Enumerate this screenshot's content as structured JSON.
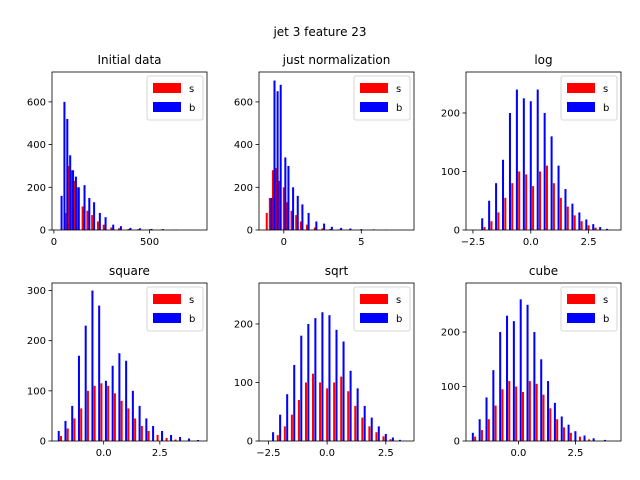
{
  "figure": {
    "title": "jet 3 feature 23"
  },
  "colors": {
    "s": "#ff0000",
    "b": "#0000ff"
  },
  "chart_data": [
    {
      "type": "bar",
      "title": "Initial data",
      "xlim": [
        -10,
        800
      ],
      "ylim": [
        0,
        740
      ],
      "xticks": [
        0,
        500
      ],
      "xtick_labels": [
        "0",
        "500"
      ],
      "yticks": [
        0,
        200,
        400,
        600
      ],
      "ytick_labels": [
        "0",
        "200",
        "400",
        "600"
      ],
      "legend": [
        "s",
        "b"
      ],
      "legend_position": "upper right",
      "series": [
        {
          "name": "s",
          "x": [
            60,
            75,
            90,
            105,
            120,
            150,
            175,
            200,
            230,
            260,
            300,
            340,
            390,
            440,
            500,
            560,
            620
          ],
          "values": [
            80,
            300,
            280,
            230,
            200,
            110,
            90,
            70,
            40,
            25,
            12,
            8,
            5,
            4,
            3,
            2,
            1
          ]
        },
        {
          "name": "b",
          "x": [
            40,
            55,
            70,
            85,
            100,
            115,
            130,
            160,
            185,
            210,
            240,
            270,
            310,
            350,
            400,
            450,
            510,
            570,
            640,
            720
          ],
          "values": [
            160,
            600,
            520,
            350,
            280,
            250,
            200,
            210,
            150,
            130,
            80,
            60,
            25,
            18,
            10,
            8,
            5,
            4,
            2,
            1
          ]
        }
      ]
    },
    {
      "type": "bar",
      "title": "just normalization",
      "xlim": [
        -1.6,
        8.4
      ],
      "ylim": [
        0,
        740
      ],
      "xticks": [
        0,
        5
      ],
      "xtick_labels": [
        "0",
        "5"
      ],
      "yticks": [
        0,
        200,
        400,
        600
      ],
      "ytick_labels": [
        "0",
        "200",
        "400",
        "600"
      ],
      "legend": [
        "s",
        "b"
      ],
      "legend_position": "upper right",
      "series": [
        {
          "name": "s",
          "x": [
            -1.1,
            -0.9,
            -0.7,
            -0.5,
            -0.3,
            0.0,
            0.2,
            0.5,
            0.8,
            1.1,
            1.5,
            2.0,
            2.5,
            3.0,
            3.6,
            4.2,
            5.0
          ],
          "values": [
            80,
            150,
            280,
            290,
            230,
            200,
            130,
            90,
            70,
            40,
            25,
            12,
            8,
            5,
            3,
            2,
            1
          ]
        },
        {
          "name": "b",
          "x": [
            -0.8,
            -0.6,
            -0.4,
            -0.2,
            0.1,
            0.3,
            0.6,
            0.9,
            1.2,
            1.6,
            2.1,
            2.6,
            3.1,
            3.7,
            4.3,
            5.0,
            5.8,
            6.6,
            7.5
          ],
          "values": [
            150,
            700,
            650,
            680,
            340,
            300,
            200,
            160,
            120,
            80,
            40,
            30,
            15,
            10,
            7,
            4,
            3,
            2,
            1
          ]
        }
      ]
    },
    {
      "type": "bar",
      "title": "log",
      "xlim": [
        -2.8,
        3.9
      ],
      "ylim": [
        0,
        270
      ],
      "xticks": [
        -2.5,
        0.0,
        2.5
      ],
      "xtick_labels": [
        "−2.5",
        "0.0",
        "2.5"
      ],
      "yticks": [
        0,
        100,
        200
      ],
      "ytick_labels": [
        "0",
        "100",
        "200"
      ],
      "legend": [
        "s",
        "b"
      ],
      "legend_position": "upper right",
      "series": [
        {
          "name": "s",
          "x": [
            -2.0,
            -1.7,
            -1.4,
            -1.1,
            -0.8,
            -0.5,
            -0.2,
            0.1,
            0.4,
            0.7,
            1.0,
            1.3,
            1.6,
            1.9,
            2.2,
            2.5,
            2.8
          ],
          "values": [
            5,
            15,
            30,
            55,
            80,
            100,
            95,
            75,
            100,
            110,
            80,
            55,
            40,
            25,
            15,
            8,
            4
          ]
        },
        {
          "name": "b",
          "x": [
            -2.1,
            -1.8,
            -1.5,
            -1.2,
            -0.9,
            -0.6,
            -0.3,
            0.0,
            0.3,
            0.6,
            0.9,
            1.2,
            1.5,
            1.8,
            2.1,
            2.4,
            2.7,
            3.0,
            3.3
          ],
          "values": [
            20,
            50,
            80,
            120,
            200,
            240,
            225,
            220,
            240,
            200,
            160,
            110,
            70,
            45,
            30,
            18,
            10,
            5,
            2
          ]
        }
      ]
    },
    {
      "type": "bar",
      "title": "square",
      "xlim": [
        -2.3,
        4.6
      ],
      "ylim": [
        0,
        315
      ],
      "xticks": [
        0.0,
        2.5
      ],
      "xtick_labels": [
        "0.0",
        "2.5"
      ],
      "yticks": [
        0,
        100,
        200,
        300
      ],
      "ytick_labels": [
        "0",
        "100",
        "200",
        "300"
      ],
      "legend": [
        "s",
        "b"
      ],
      "legend_position": "upper right",
      "series": [
        {
          "name": "s",
          "x": [
            -1.9,
            -1.6,
            -1.3,
            -1.0,
            -0.7,
            -0.4,
            -0.1,
            0.2,
            0.5,
            0.8,
            1.1,
            1.4,
            1.7,
            2.0,
            2.4,
            2.8,
            3.2
          ],
          "values": [
            10,
            25,
            45,
            65,
            100,
            110,
            115,
            110,
            95,
            80,
            65,
            45,
            30,
            20,
            12,
            6,
            3
          ]
        },
        {
          "name": "b",
          "x": [
            -2.0,
            -1.7,
            -1.4,
            -1.1,
            -0.8,
            -0.5,
            -0.2,
            0.1,
            0.4,
            0.7,
            1.0,
            1.3,
            1.6,
            1.9,
            2.2,
            2.6,
            3.0,
            3.4,
            3.8,
            4.2
          ],
          "values": [
            20,
            40,
            70,
            170,
            230,
            300,
            270,
            120,
            150,
            175,
            160,
            100,
            70,
            45,
            30,
            20,
            12,
            8,
            5,
            2
          ]
        }
      ]
    },
    {
      "type": "bar",
      "title": "sqrt",
      "xlim": [
        -2.9,
        3.7
      ],
      "ylim": [
        0,
        270
      ],
      "xticks": [
        -2.5,
        0.0,
        2.5
      ],
      "xtick_labels": [
        "−2.5",
        "0.0",
        "2.5"
      ],
      "yticks": [
        0,
        100,
        200
      ],
      "ytick_labels": [
        "0",
        "100",
        "200"
      ],
      "legend": [
        "s",
        "b"
      ],
      "legend_position": "upper right",
      "series": [
        {
          "name": "s",
          "x": [
            -2.1,
            -1.8,
            -1.5,
            -1.2,
            -0.9,
            -0.6,
            -0.3,
            0.0,
            0.3,
            0.6,
            0.9,
            1.2,
            1.5,
            1.8,
            2.1,
            2.4,
            2.7
          ],
          "values": [
            10,
            25,
            45,
            70,
            100,
            115,
            100,
            90,
            100,
            110,
            85,
            60,
            40,
            25,
            15,
            8,
            3
          ]
        },
        {
          "name": "b",
          "x": [
            -2.3,
            -2.0,
            -1.7,
            -1.4,
            -1.1,
            -0.8,
            -0.5,
            -0.2,
            0.1,
            0.4,
            0.7,
            1.0,
            1.3,
            1.6,
            1.9,
            2.2,
            2.5,
            2.8,
            3.1
          ],
          "values": [
            15,
            45,
            80,
            130,
            180,
            200,
            210,
            220,
            215,
            190,
            170,
            120,
            90,
            60,
            40,
            25,
            12,
            6,
            2
          ]
        }
      ]
    },
    {
      "type": "bar",
      "title": "cube",
      "xlim": [
        -2.3,
        4.5
      ],
      "ylim": [
        0,
        290
      ],
      "xticks": [
        0.0,
        2.5
      ],
      "xtick_labels": [
        "0.0",
        "2.5"
      ],
      "yticks": [
        0,
        100,
        200
      ],
      "ytick_labels": [
        "0",
        "100",
        "200"
      ],
      "legend": [
        "s",
        "b"
      ],
      "legend_position": "upper right",
      "series": [
        {
          "name": "s",
          "x": [
            -1.9,
            -1.6,
            -1.3,
            -1.0,
            -0.7,
            -0.4,
            -0.1,
            0.2,
            0.5,
            0.8,
            1.1,
            1.4,
            1.7,
            2.0,
            2.3,
            2.7,
            3.1
          ],
          "values": [
            8,
            20,
            40,
            65,
            95,
            110,
            100,
            90,
            110,
            105,
            85,
            60,
            40,
            25,
            15,
            8,
            3
          ]
        },
        {
          "name": "b",
          "x": [
            -2.0,
            -1.7,
            -1.4,
            -1.1,
            -0.8,
            -0.5,
            -0.2,
            0.1,
            0.4,
            0.7,
            1.0,
            1.3,
            1.6,
            1.9,
            2.2,
            2.5,
            2.9,
            3.3,
            3.8
          ],
          "values": [
            15,
            40,
            80,
            130,
            200,
            230,
            220,
            260,
            250,
            200,
            150,
            110,
            70,
            45,
            30,
            18,
            10,
            5,
            2
          ]
        }
      ]
    }
  ]
}
